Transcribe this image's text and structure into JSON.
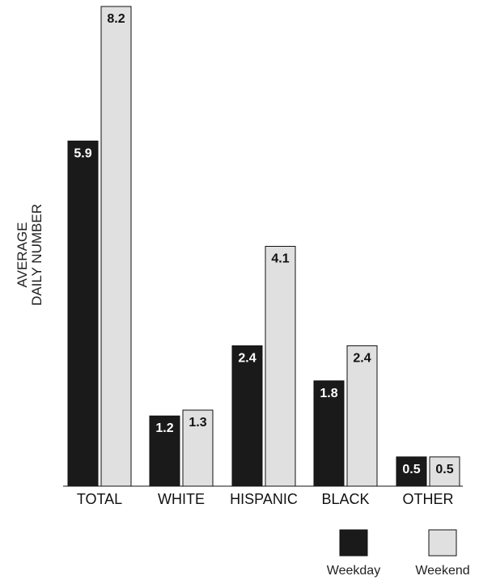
{
  "chart_data": {
    "type": "bar",
    "ylabel": [
      "AVERAGE",
      "DAILY NUMBER"
    ],
    "categories": [
      "TOTAL",
      "WHITE",
      "HISPANIC",
      "BLACK",
      "OTHER"
    ],
    "series": [
      {
        "name": "Weekday",
        "values": [
          5.9,
          1.2,
          2.4,
          1.8,
          0.5
        ],
        "labels": [
          "5.9",
          "1.2",
          "2.4",
          "1.8",
          "0.5"
        ],
        "color": "#1a1a1a",
        "label_color": "#ffffff"
      },
      {
        "name": "Weekend",
        "values": [
          8.2,
          1.3,
          4.1,
          2.4,
          0.5
        ],
        "labels": [
          "8.2",
          "1.3",
          "4.1",
          "2.4",
          "0.5"
        ],
        "color": "#e0e0e0",
        "label_color": "#111111"
      }
    ],
    "ylim": [
      0,
      8.2
    ],
    "grid": false,
    "legend_position": "bottom-right"
  }
}
